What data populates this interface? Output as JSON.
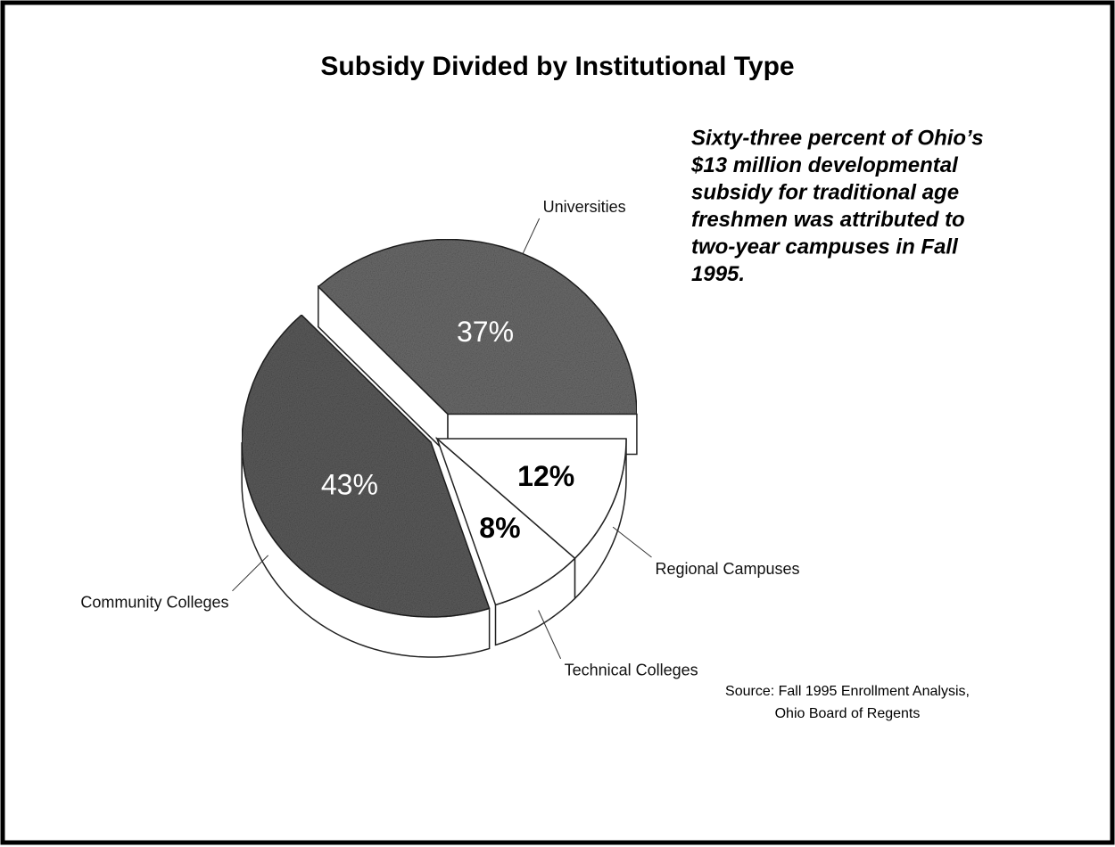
{
  "chart_data": {
    "type": "pie",
    "title": "Subsidy Divided by Institutional Type",
    "annotation": [
      "Sixty-three percent of Ohio’s",
      "$13 million developmental",
      "subsidy for traditional age",
      "freshmen was attributed to",
      "two-year campuses in Fall",
      "1995."
    ],
    "source": [
      "Source: Fall 1995 Enrollment Analysis,",
      "Ohio Board of Regents"
    ],
    "categories": [
      "Universities",
      "Community Colleges",
      "Technical Colleges",
      "Regional Campuses"
    ],
    "values": [
      37,
      43,
      8,
      12
    ],
    "value_labels": [
      "37%",
      "43%",
      "8%",
      "12%"
    ],
    "colors": [
      "#6e6e6e",
      "#5e5e5e",
      "#ffffff",
      "#ffffff"
    ]
  }
}
